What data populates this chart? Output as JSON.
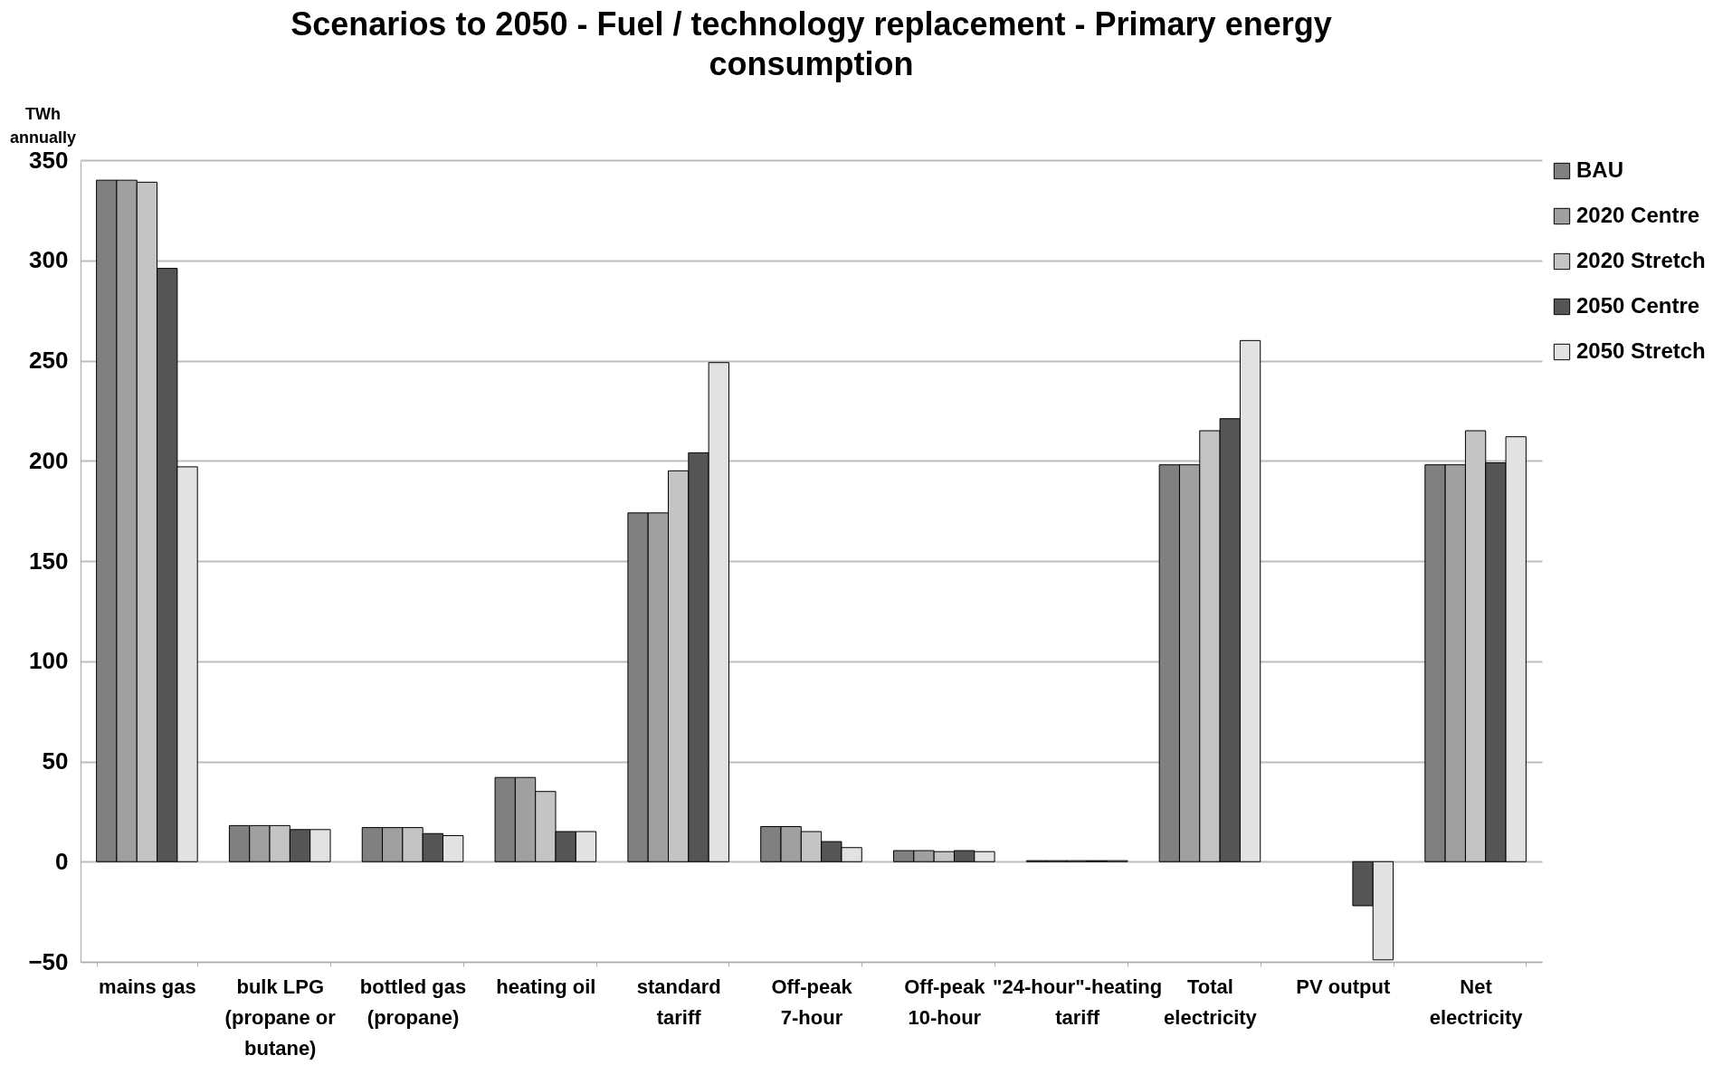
{
  "chart_data": {
    "type": "bar",
    "title": "Scenarios to 2050 - Fuel / technology replacement - Primary energy consumption",
    "ylabel": "TWh annually",
    "categories": [
      "mains gas",
      "bulk LPG (propane or butane)",
      "bottled gas (propane)",
      "heating oil",
      "standard tariff",
      "Off-peak 7-hour",
      "Off-peak 10-hour",
      "\"24-hour\"-heating tariff",
      "Total electricity",
      "PV output",
      "Net electricity"
    ],
    "series": [
      {
        "name": "BAU",
        "color": "#808080",
        "values": [
          340,
          18,
          17,
          42,
          174,
          17.5,
          5.5,
          0.5,
          198,
          null,
          198
        ]
      },
      {
        "name": "2020 Centre",
        "color": "#a0a0a0",
        "values": [
          340,
          18,
          17,
          42,
          174,
          17.5,
          5.5,
          0.5,
          198,
          null,
          198
        ]
      },
      {
        "name": "2020 Stretch",
        "color": "#c4c4c4",
        "values": [
          339,
          18,
          17,
          35,
          195,
          15,
          5,
          0.5,
          215,
          null,
          215
        ]
      },
      {
        "name": "2050 Centre",
        "color": "#555555",
        "values": [
          296,
          16,
          14,
          15,
          204,
          10,
          5.5,
          0.5,
          221,
          -22,
          199
        ]
      },
      {
        "name": "2050 Stretch",
        "color": "#e2e2e2",
        "values": [
          197,
          16,
          13,
          15,
          249,
          7,
          5,
          0.5,
          260,
          -49,
          212
        ]
      }
    ],
    "ylim": [
      -50,
      350
    ],
    "yticks": [
      -50,
      0,
      50,
      100,
      150,
      200,
      250,
      300,
      350
    ],
    "grid": "y",
    "legend": "right"
  }
}
